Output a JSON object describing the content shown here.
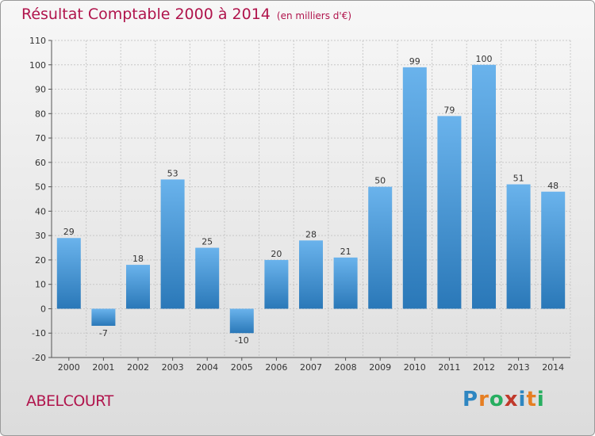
{
  "header": {
    "title": "Résultat Comptable 2000 à 2014",
    "subtitle": "(en milliers d'€)"
  },
  "footer": {
    "commune": "ABELCOURT",
    "logo_letters": [
      "P",
      "r",
      "o",
      "x",
      "i",
      "t",
      "i"
    ],
    "logo_colors": [
      "#2e86c1",
      "#e67e22",
      "#27ae60",
      "#c0392b",
      "#2e86c1",
      "#e67e22",
      "#27ae60"
    ]
  },
  "colors": {
    "bar_light": "#6ab3ec",
    "bar_dark": "#2a78b8",
    "grid": "#c8c8c8",
    "text": "#333333"
  },
  "chart_data": {
    "type": "bar",
    "title": "Résultat Comptable 2000 à 2014",
    "subtitle": "(en milliers d'€)",
    "xlabel": "",
    "ylabel": "",
    "categories": [
      "2000",
      "2001",
      "2002",
      "2003",
      "2004",
      "2005",
      "2006",
      "2007",
      "2008",
      "2009",
      "2010",
      "2011",
      "2012",
      "2013",
      "2014"
    ],
    "values": [
      29,
      -7,
      18,
      53,
      25,
      -10,
      20,
      28,
      21,
      50,
      99,
      79,
      100,
      51,
      48
    ],
    "data_labels": [
      "29",
      "-7",
      "18",
      "53",
      "25",
      "-10",
      "20",
      "28",
      "21",
      "50",
      "99",
      "79",
      "100",
      "51",
      "48"
    ],
    "yticks": [
      -20,
      -10,
      0,
      10,
      20,
      30,
      40,
      50,
      60,
      70,
      80,
      90,
      100,
      110
    ],
    "ytick_labels": [
      "-20",
      "-10",
      "0",
      "10",
      "20",
      "30",
      "40",
      "50",
      "60",
      "70",
      "80",
      "90",
      "100",
      "110"
    ],
    "ylim": [
      -20,
      110
    ],
    "grid": true,
    "legend": "none"
  }
}
